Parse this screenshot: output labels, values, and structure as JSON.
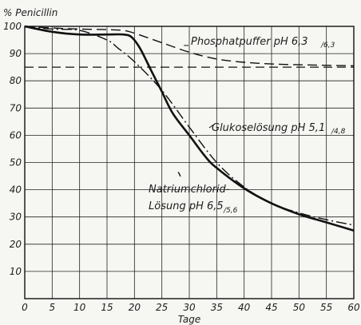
{
  "chart_data": {
    "type": "line",
    "xlabel": "Tage",
    "ylabel": "% Penicillin",
    "xlim": [
      0,
      60
    ],
    "ylim": [
      0,
      100
    ],
    "xticks": [
      0,
      5,
      10,
      15,
      20,
      25,
      30,
      35,
      40,
      45,
      50,
      55,
      60
    ],
    "yticks": [
      10,
      20,
      30,
      40,
      50,
      60,
      70,
      80,
      90,
      100
    ],
    "grid": true,
    "reference_line": {
      "y": 85,
      "style": "dashed"
    },
    "series": [
      {
        "key": "phosphat",
        "style": "dashed",
        "x": [
          0,
          5,
          10,
          15,
          18,
          20,
          25,
          30,
          35,
          40,
          45,
          50,
          55,
          60
        ],
        "y": [
          100,
          99.4,
          99,
          98.8,
          98.5,
          97.5,
          94,
          90.5,
          88,
          86.8,
          86.2,
          85.9,
          85.7,
          85.5
        ]
      },
      {
        "key": "glukose",
        "style": "dash-dot",
        "x": [
          0,
          5,
          10,
          15,
          17,
          20,
          25,
          30,
          35,
          40,
          45,
          50,
          55,
          60
        ],
        "y": [
          100,
          99,
          98.5,
          95,
          92,
          87,
          76.5,
          63,
          50,
          41,
          35,
          31.5,
          29,
          27
        ]
      },
      {
        "key": "natriumchlorid",
        "style": "solid",
        "x": [
          0,
          5,
          10,
          15,
          18,
          19.5,
          21,
          23,
          25,
          27,
          30,
          33,
          35,
          40,
          45,
          50,
          55,
          60
        ],
        "y": [
          100,
          98,
          97,
          97,
          97,
          96,
          92,
          84,
          76,
          68,
          60,
          52,
          48,
          40.5,
          35,
          31,
          28,
          25
        ]
      }
    ],
    "annotations": [
      {
        "series": "phosphat",
        "text": "Phosphatpuffer pH 6,3",
        "fraction": "/6,3",
        "x": 29,
        "y": 93
      },
      {
        "series": "glukose",
        "text": "Glukoselösung pH 5,1",
        "fraction": "/4,8",
        "x": 34.5,
        "y": 64
      },
      {
        "series": "natriumchlorid",
        "text_lines": [
          "Natriumchlorid-",
          "Lösung pH 6,5"
        ],
        "fraction": "/5,6",
        "x": 28,
        "y": 46.5
      }
    ]
  }
}
